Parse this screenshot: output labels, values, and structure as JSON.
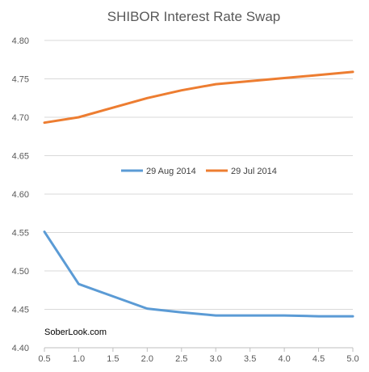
{
  "chart_data": {
    "type": "line",
    "title": "SHIBOR Interest Rate Swap",
    "xlabel": "",
    "ylabel": "",
    "x": [
      0.5,
      1.0,
      2.0,
      2.5,
      3.0,
      4.0,
      4.5,
      5.0
    ],
    "x_ticks": [
      "0.5",
      "1.0",
      "1.5",
      "2.0",
      "2.5",
      "3.0",
      "3.5",
      "4.0",
      "4.5",
      "5.0"
    ],
    "y_ticks": [
      "4.40",
      "4.45",
      "4.50",
      "4.55",
      "4.60",
      "4.65",
      "4.70",
      "4.75",
      "4.80"
    ],
    "ylim": [
      4.4,
      4.8
    ],
    "xlim": [
      0.5,
      5.0
    ],
    "grid": true,
    "legend_position": "center",
    "series": [
      {
        "name": "29 Aug 2014",
        "color": "#5b9bd5",
        "values": [
          4.551,
          4.483,
          4.451,
          4.446,
          4.442,
          4.442,
          4.441,
          4.441
        ]
      },
      {
        "name": "29 Jul 2014",
        "color": "#ed7d31",
        "values": [
          4.693,
          4.7,
          4.725,
          4.735,
          4.743,
          4.751,
          4.755,
          4.759
        ]
      }
    ],
    "watermark": "SoberLook.com"
  }
}
